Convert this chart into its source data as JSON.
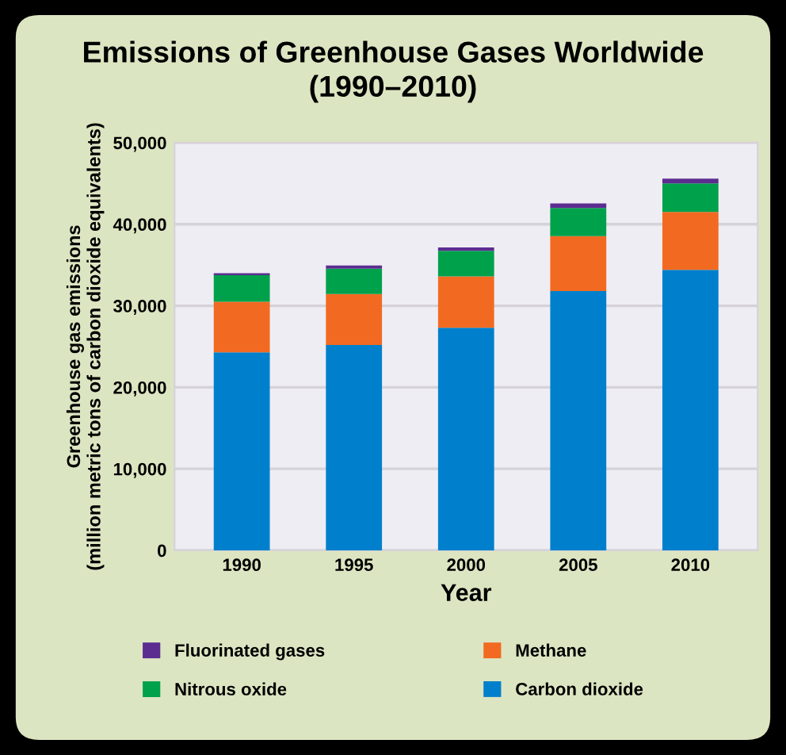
{
  "chart_data": {
    "type": "bar",
    "title": "Emissions of Greenhouse Gases Worldwide\n(1990–2010)",
    "xlabel": "Year",
    "ylabel": "Greenhouse gas emissions\n(million metric tons of carbon dioxide equivalents)",
    "categories": [
      "1990",
      "1995",
      "2000",
      "2005",
      "2010"
    ],
    "stacked": true,
    "series": [
      {
        "name": "Carbon dioxide",
        "color": "#0080cc",
        "values": [
          24300,
          25200,
          27300,
          31800,
          34400
        ]
      },
      {
        "name": "Methane",
        "color": "#f26a21",
        "values": [
          6200,
          6250,
          6300,
          6750,
          7100
        ]
      },
      {
        "name": "Nitrous oxide",
        "color": "#00a14b",
        "values": [
          3250,
          3100,
          3150,
          3450,
          3500
        ]
      },
      {
        "name": "Fluorinated gases",
        "color": "#5c2d91",
        "values": [
          250,
          400,
          400,
          550,
          600
        ]
      }
    ],
    "ylim": [
      0,
      50000
    ],
    "yticks": [
      {
        "value": 0,
        "label": "0"
      },
      {
        "value": 10000,
        "label": "10,000"
      },
      {
        "value": 20000,
        "label": "20,000"
      },
      {
        "value": 30000,
        "label": "30,000"
      },
      {
        "value": 40000,
        "label": "40,000"
      },
      {
        "value": 50000,
        "label": "50,000"
      }
    ],
    "grid": "y",
    "legend": "bottom"
  }
}
